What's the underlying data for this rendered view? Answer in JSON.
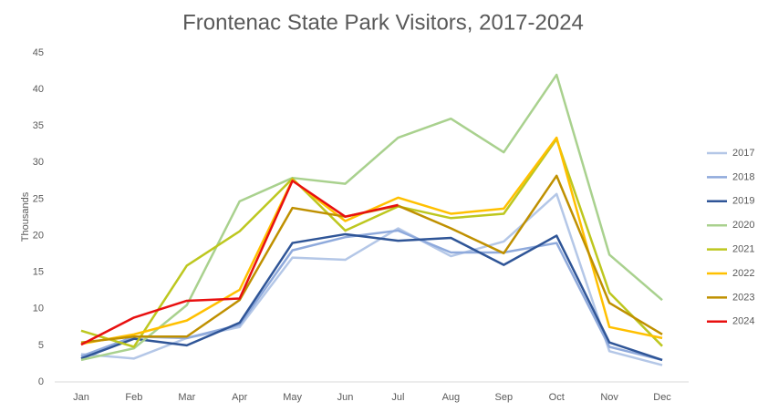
{
  "chart_data": {
    "type": "line",
    "title": "Frontenac State Park Visitors, 2017-2024",
    "ylabel": "Thousands",
    "categories": [
      "Jan",
      "Feb",
      "Mar",
      "Apr",
      "May",
      "Jun",
      "Jul",
      "Aug",
      "Sep",
      "Oct",
      "Nov",
      "Dec"
    ],
    "ylim": [
      0,
      45
    ],
    "yticks": [
      0,
      5,
      10,
      15,
      20,
      25,
      30,
      35,
      40,
      45
    ],
    "grid": false,
    "legend": "right",
    "series": [
      {
        "name": "2017",
        "color": "#b4c7e7",
        "values": [
          3.8,
          3.2,
          6,
          7.5,
          17,
          16.7,
          21,
          17.2,
          19.2,
          25.7,
          4.2,
          2.3
        ]
      },
      {
        "name": "2018",
        "color": "#8faadc",
        "values": [
          3.5,
          6.2,
          6,
          7.8,
          18,
          19.8,
          20.7,
          17.7,
          17.7,
          19,
          4.8,
          3
        ]
      },
      {
        "name": "2019",
        "color": "#2f5597",
        "values": [
          3.2,
          5.9,
          5,
          8.1,
          19,
          20.2,
          19.3,
          19.7,
          16,
          20,
          5.4,
          3
        ]
      },
      {
        "name": "2020",
        "color": "#a9d18e",
        "values": [
          3,
          4.6,
          10.5,
          24.7,
          27.9,
          27.1,
          33.4,
          36,
          31.4,
          42,
          17.4,
          11.2
        ]
      },
      {
        "name": "2021",
        "color": "#bdc71f",
        "values": [
          7,
          4.8,
          15.9,
          20.6,
          27.8,
          20.7,
          24,
          22.4,
          23,
          33.2,
          12.2,
          4.9
        ]
      },
      {
        "name": "2022",
        "color": "#ffc000",
        "values": [
          5.2,
          6.5,
          8.4,
          12.6,
          27.6,
          22,
          25.2,
          23,
          23.7,
          33.4,
          7.5,
          6
        ]
      },
      {
        "name": "2023",
        "color": "#bf9000",
        "values": [
          5.4,
          6.2,
          6.2,
          11.2,
          23.8,
          22.6,
          24.1,
          21,
          17.6,
          28.2,
          10.8,
          6.5
        ]
      },
      {
        "name": "2024",
        "color": "#e81010",
        "values": [
          5.1,
          8.8,
          11.1,
          11.4,
          27.5,
          22.6,
          24.2,
          null,
          null,
          null,
          null,
          null
        ]
      }
    ]
  }
}
